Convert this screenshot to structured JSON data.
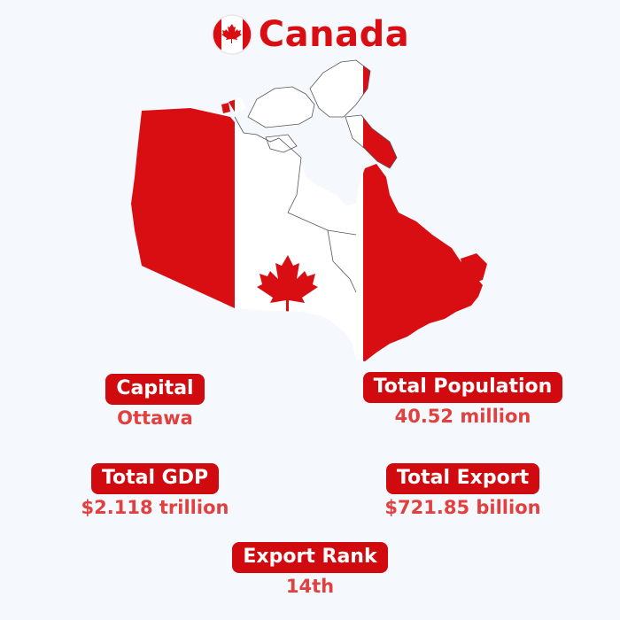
{
  "header": {
    "country": "Canada",
    "flag_icon": "canada-flag-icon"
  },
  "map": {
    "icon": "canada-map-flag-icon",
    "colors": {
      "red": "#d80e13",
      "white": "#ffffff"
    }
  },
  "stats": {
    "capital": {
      "label": "Capital",
      "value": "Ottawa"
    },
    "population": {
      "label": "Total Population",
      "value": "40.52 million"
    },
    "gdp": {
      "label": "Total GDP",
      "value": "$2.118 trillion"
    },
    "export": {
      "label": "Total Export",
      "value": "$721.85 billion"
    },
    "rank": {
      "label": "Export Rank",
      "value": "14th"
    }
  },
  "theme": {
    "accent": "#d00a0f",
    "value_color": "#e23f3f",
    "background": "#f5f8fc"
  }
}
